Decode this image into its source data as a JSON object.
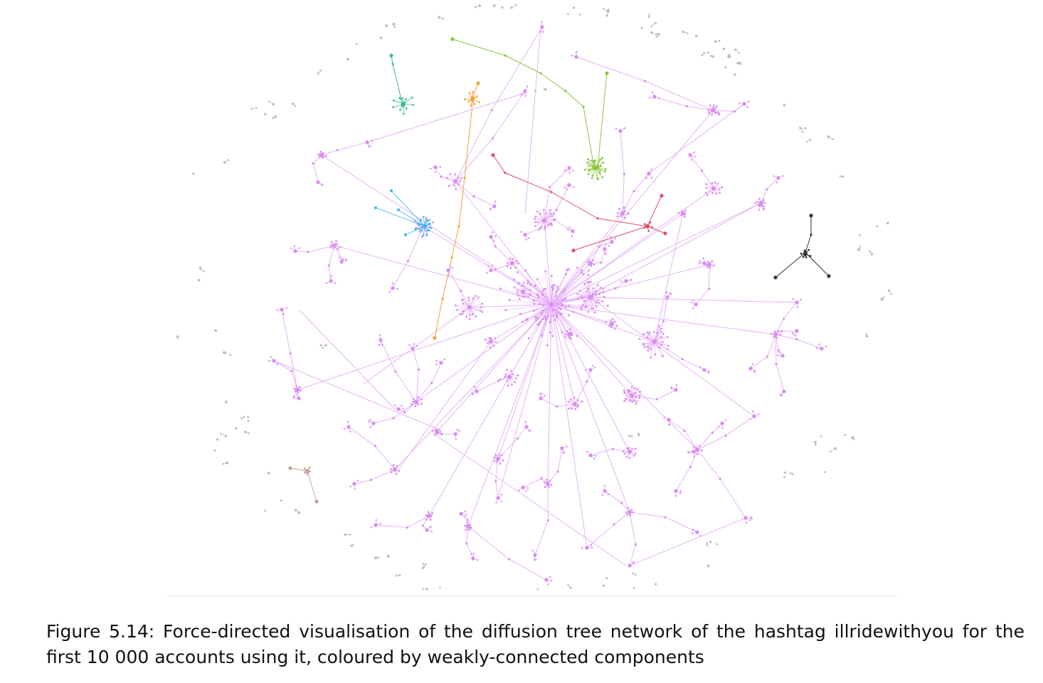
{
  "figure": {
    "caption": "Figure 5.14: Force-directed visualisation of the diffusion tree network of the hashtag illridewithyou for the first 10 000 accounts using it, coloured by weakly-connected components"
  },
  "colors": {
    "background": "#ffffff",
    "main_component": "#d98cf2",
    "main_edge": "#e6b3f7",
    "green": "#8cc63f",
    "teal": "#3dbb8c",
    "orange": "#f7a23a",
    "cyan": "#35bdf0",
    "red": "#e0506a",
    "dark": "#333333",
    "brown": "#c9a09a",
    "isolated": "#bdbdbd"
  }
}
